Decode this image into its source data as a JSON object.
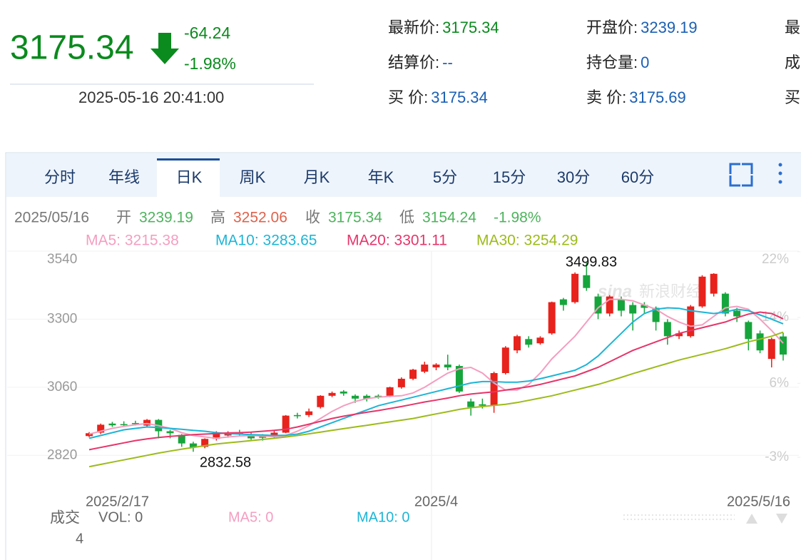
{
  "quote": {
    "price": "3175.34",
    "change": "-64.24",
    "change_pct": "-1.98%",
    "time": "2025-05-16 20:41:00"
  },
  "fields": [
    [
      {
        "label": "最新价:",
        "value": "3175.34"
      },
      {
        "label": "开盘价:",
        "value": "3239.19"
      },
      {
        "label": "最"
      }
    ],
    [
      {
        "label": "结算价:",
        "value": "--"
      },
      {
        "label": "持仓量:",
        "value": "0"
      },
      {
        "label": "成"
      }
    ],
    [
      {
        "label": "买  价:",
        "value": "3175.34"
      },
      {
        "label": "卖  价:",
        "value": "3175.69"
      },
      {
        "label": "买"
      }
    ]
  ],
  "tabs": [
    "分时",
    "年线",
    "日K",
    "周K",
    "月K",
    "年K",
    "5分",
    "15分",
    "30分",
    "60分"
  ],
  "info": {
    "date": "2025/05/16",
    "items": [
      {
        "label": "开",
        "value": "3239.19"
      },
      {
        "label": "高",
        "value": "3252.06"
      },
      {
        "label": "收",
        "value": "3175.34"
      },
      {
        "label": "低",
        "value": "3154.24"
      }
    ],
    "change": "-1.98%"
  },
  "watermark": {
    "logo": "sina",
    "text": "新浪财经"
  },
  "volume": {
    "title": "成交",
    "vol": "VOL: 0",
    "ma5": "MA5: 0",
    "ma10": "MA10: 0",
    "scale": "4"
  },
  "chart_data": {
    "type": "candlestick",
    "categories": [
      "2025/2/17",
      null,
      null,
      null,
      null,
      null,
      null,
      null,
      null,
      null,
      null,
      null,
      null,
      null,
      null,
      null,
      null,
      null,
      null,
      null,
      null,
      null,
      null,
      null,
      null,
      null,
      null,
      null,
      null,
      null,
      "2025/4",
      null,
      null,
      null,
      null,
      null,
      null,
      null,
      null,
      null,
      null,
      null,
      null,
      null,
      null,
      null,
      null,
      null,
      null,
      null,
      null,
      null,
      null,
      null,
      null,
      null,
      null,
      null,
      null,
      null,
      "2025/5/16"
    ],
    "open": [
      2888,
      2900,
      2932,
      2930,
      2934,
      2925,
      2945,
      2905,
      2892,
      2862,
      2850,
      2878,
      2890,
      2900,
      2895,
      2890,
      2885,
      2900,
      2962,
      2962,
      2990,
      3030,
      3045,
      3030,
      3030,
      3030,
      3030,
      3060,
      3090,
      3115,
      3130,
      3140,
      3135,
      3010,
      3000,
      2995,
      3110,
      3190,
      3230,
      3215,
      3250,
      3370,
      3360,
      3455,
      3380,
      3320,
      3370,
      3350,
      3350,
      3340,
      3290,
      3240,
      3240,
      3345,
      3390,
      3390,
      3330,
      3290,
      3250,
      3160,
      3239.19
    ],
    "close": [
      2898,
      2928,
      2926,
      2928,
      2932,
      2945,
      2905,
      2898,
      2862,
      2848,
      2878,
      2898,
      2900,
      2895,
      2880,
      2882,
      2900,
      2960,
      2958,
      2975,
      3030,
      3040,
      3038,
      3020,
      3020,
      3025,
      3060,
      3090,
      3122,
      3140,
      3140,
      3130,
      3045,
      2990,
      2995,
      3110,
      3200,
      3240,
      3210,
      3235,
      3360,
      3350,
      3460,
      3410,
      3320,
      3380,
      3330,
      3320,
      3340,
      3290,
      3240,
      3250,
      3345,
      3450,
      3460,
      3320,
      3310,
      3230,
      3190,
      3230,
      3175.34
    ],
    "high": [
      2902,
      2932,
      2938,
      2940,
      2942,
      2948,
      2948,
      2910,
      2895,
      2868,
      2880,
      2905,
      2905,
      2910,
      2900,
      2895,
      2910,
      2962,
      2970,
      2985,
      3032,
      3045,
      3050,
      3035,
      3035,
      3035,
      3062,
      3095,
      3125,
      3150,
      3145,
      3175,
      3140,
      3020,
      3020,
      3115,
      3205,
      3245,
      3240,
      3240,
      3362,
      3375,
      3465,
      3499.83,
      3390,
      3385,
      3380,
      3360,
      3360,
      3345,
      3300,
      3260,
      3350,
      3455,
      3462,
      3395,
      3340,
      3295,
      3260,
      3235,
      3252.06
    ],
    "low": [
      2884,
      2895,
      2920,
      2922,
      2925,
      2920,
      2880,
      2880,
      2850,
      2832.58,
      2845,
      2872,
      2882,
      2888,
      2875,
      2872,
      2880,
      2898,
      2950,
      2955,
      2985,
      3025,
      3030,
      3005,
      3010,
      3020,
      3025,
      3055,
      3085,
      3110,
      3120,
      3120,
      3040,
      2960,
      2985,
      2970,
      3105,
      3180,
      3200,
      3210,
      3245,
      3330,
      3355,
      3400,
      3300,
      3310,
      3310,
      3260,
      3320,
      3260,
      3210,
      3230,
      3235,
      3340,
      3380,
      3310,
      3290,
      3190,
      3180,
      3130,
      3154.24
    ],
    "up_color": "#e8221c",
    "down_color": "#16a53c",
    "series": [
      {
        "name": "MA5: 3215.38",
        "color": "#f49ebf",
        "values": [
          2895,
          2905,
          2915,
          2922,
          2928,
          2932,
          2925,
          2915,
          2900,
          2890,
          2885,
          2880,
          2885,
          2888,
          2890,
          2888,
          2886,
          2890,
          2905,
          2925,
          2950,
          2975,
          2995,
          3010,
          3020,
          3025,
          3028,
          3030,
          3040,
          3060,
          3085,
          3110,
          3125,
          3130,
          3110,
          3075,
          3050,
          3050,
          3070,
          3110,
          3160,
          3200,
          3240,
          3290,
          3340,
          3370,
          3370,
          3365,
          3350,
          3335,
          3310,
          3290,
          3275,
          3280,
          3310,
          3340,
          3345,
          3335,
          3300,
          3260,
          3215.38
        ]
      },
      {
        "name": "MA10: 3283.65",
        "color": "#1db5d6",
        "values": [
          2880,
          2890,
          2900,
          2910,
          2915,
          2920,
          2918,
          2915,
          2912,
          2908,
          2905,
          2900,
          2897,
          2895,
          2893,
          2892,
          2890,
          2891,
          2895,
          2905,
          2920,
          2935,
          2950,
          2965,
          2980,
          2995,
          3005,
          3015,
          3025,
          3035,
          3045,
          3055,
          3065,
          3075,
          3080,
          3080,
          3078,
          3078,
          3082,
          3090,
          3100,
          3110,
          3120,
          3140,
          3170,
          3210,
          3250,
          3290,
          3320,
          3335,
          3340,
          3338,
          3330,
          3325,
          3320,
          3325,
          3335,
          3330,
          3315,
          3300,
          3283.65
        ]
      },
      {
        "name": "MA20: 3301.11",
        "color": "#e6356a",
        "values": [
          2840,
          2848,
          2856,
          2864,
          2872,
          2878,
          2883,
          2887,
          2890,
          2893,
          2895,
          2897,
          2899,
          2900,
          2902,
          2905,
          2908,
          2912,
          2920,
          2930,
          2940,
          2950,
          2958,
          2965,
          2972,
          2978,
          2985,
          2992,
          3000,
          3008,
          3015,
          3022,
          3030,
          3036,
          3040,
          3044,
          3050,
          3056,
          3062,
          3070,
          3080,
          3090,
          3100,
          3115,
          3130,
          3150,
          3170,
          3190,
          3205,
          3220,
          3235,
          3250,
          3260,
          3270,
          3280,
          3290,
          3305,
          3318,
          3325,
          3320,
          3301.11
        ]
      },
      {
        "name": "MA30: 3254.29",
        "color": "#9cbb1a",
        "values": [
          2780,
          2788,
          2796,
          2804,
          2812,
          2820,
          2828,
          2835,
          2842,
          2848,
          2854,
          2860,
          2864,
          2868,
          2872,
          2876,
          2880,
          2885,
          2890,
          2896,
          2902,
          2908,
          2914,
          2920,
          2926,
          2932,
          2938,
          2944,
          2950,
          2958,
          2966,
          2974,
          2982,
          2988,
          2992,
          2996,
          3000,
          3006,
          3014,
          3022,
          3030,
          3040,
          3050,
          3060,
          3070,
          3082,
          3095,
          3108,
          3120,
          3132,
          3144,
          3156,
          3166,
          3176,
          3186,
          3196,
          3208,
          3220,
          3230,
          3240,
          3254.29
        ]
      }
    ],
    "ylim": [
      2690,
      3540
    ],
    "yticks": [
      2820,
      3060,
      3300,
      3540
    ],
    "y2lim": [
      -7.24,
      22.07
    ],
    "y2ticks": [
      {
        "value": -3,
        "label": "-3%"
      },
      {
        "value": 6,
        "label": "6%"
      },
      {
        "value": 14,
        "label": "14%"
      },
      {
        "value": 22,
        "label": "22%"
      }
    ],
    "grid": true
  }
}
